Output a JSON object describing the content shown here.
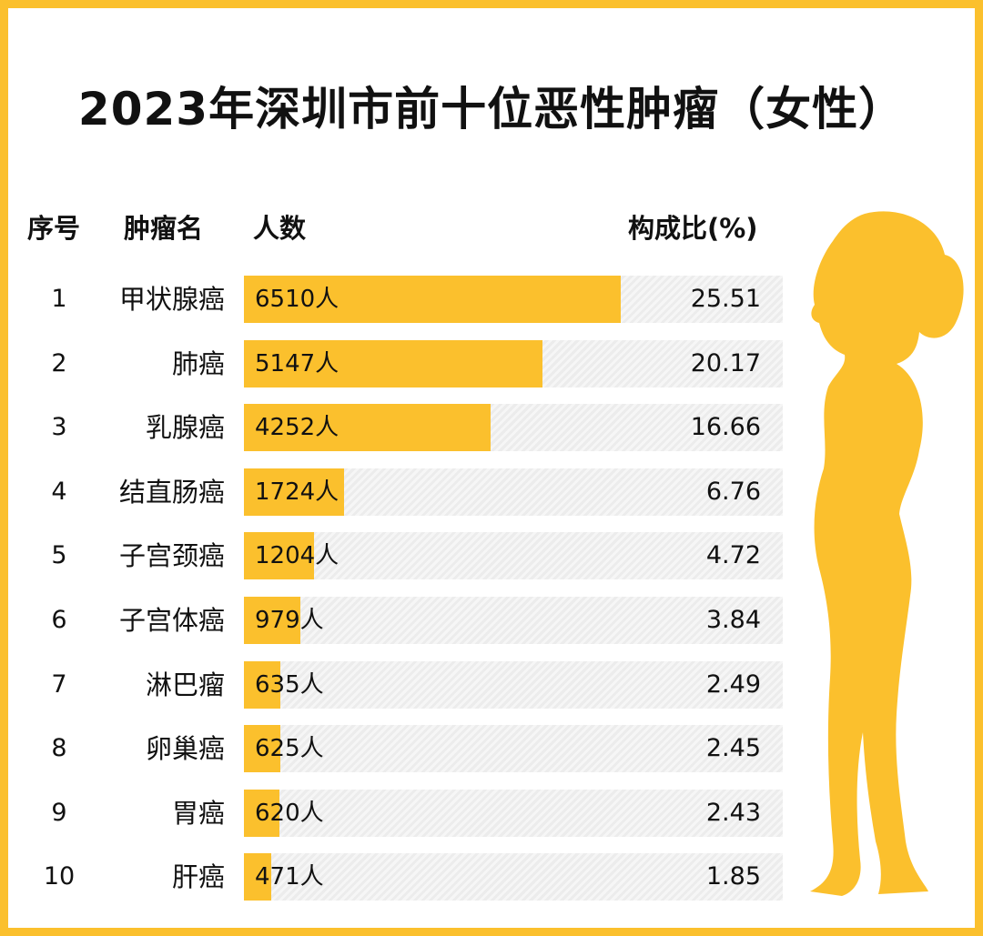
{
  "title": "2023年深圳市前十位恶性肿瘤（女性）",
  "headers": {
    "rank": "序号",
    "name": "肿瘤名",
    "count": "人数",
    "pct": "构成比(%)"
  },
  "colors": {
    "bar": "#FBC02D",
    "frame": "#FBC02D"
  },
  "chart_data": {
    "type": "bar",
    "title": "2023年深圳市前十位恶性肿瘤（女性）",
    "categories": [
      "甲状腺癌",
      "肺癌",
      "乳腺癌",
      "结直肠癌",
      "子宫颈癌",
      "子宫体癌",
      "淋巴瘤",
      "卵巢癌",
      "胃癌",
      "肝癌"
    ],
    "rows": [
      {
        "rank": "1",
        "name": "甲状腺癌",
        "value": 6510,
        "count": "6510人",
        "pct": "25.51"
      },
      {
        "rank": "2",
        "name": "肺癌",
        "value": 5147,
        "count": "5147人",
        "pct": "20.17"
      },
      {
        "rank": "3",
        "name": "乳腺癌",
        "value": 4252,
        "count": "4252人",
        "pct": "16.66"
      },
      {
        "rank": "4",
        "name": "结直肠癌",
        "value": 1724,
        "count": "1724人",
        "pct": "6.76"
      },
      {
        "rank": "5",
        "name": "子宫颈癌",
        "value": 1204,
        "count": "1204人",
        "pct": "4.72"
      },
      {
        "rank": "6",
        "name": "子宫体癌",
        "value": 979,
        "count": "979人",
        "pct": "3.84"
      },
      {
        "rank": "7",
        "name": "淋巴瘤",
        "value": 635,
        "count": "635人",
        "pct": "2.49"
      },
      {
        "rank": "8",
        "name": "卵巢癌",
        "value": 625,
        "count": "625人",
        "pct": "2.45"
      },
      {
        "rank": "9",
        "name": "胃癌",
        "value": 620,
        "count": "620人",
        "pct": "2.43"
      },
      {
        "rank": "10",
        "name": "肝癌",
        "value": 471,
        "count": "471人",
        "pct": "1.85"
      }
    ],
    "xlim": [
      0,
      9300
    ]
  }
}
